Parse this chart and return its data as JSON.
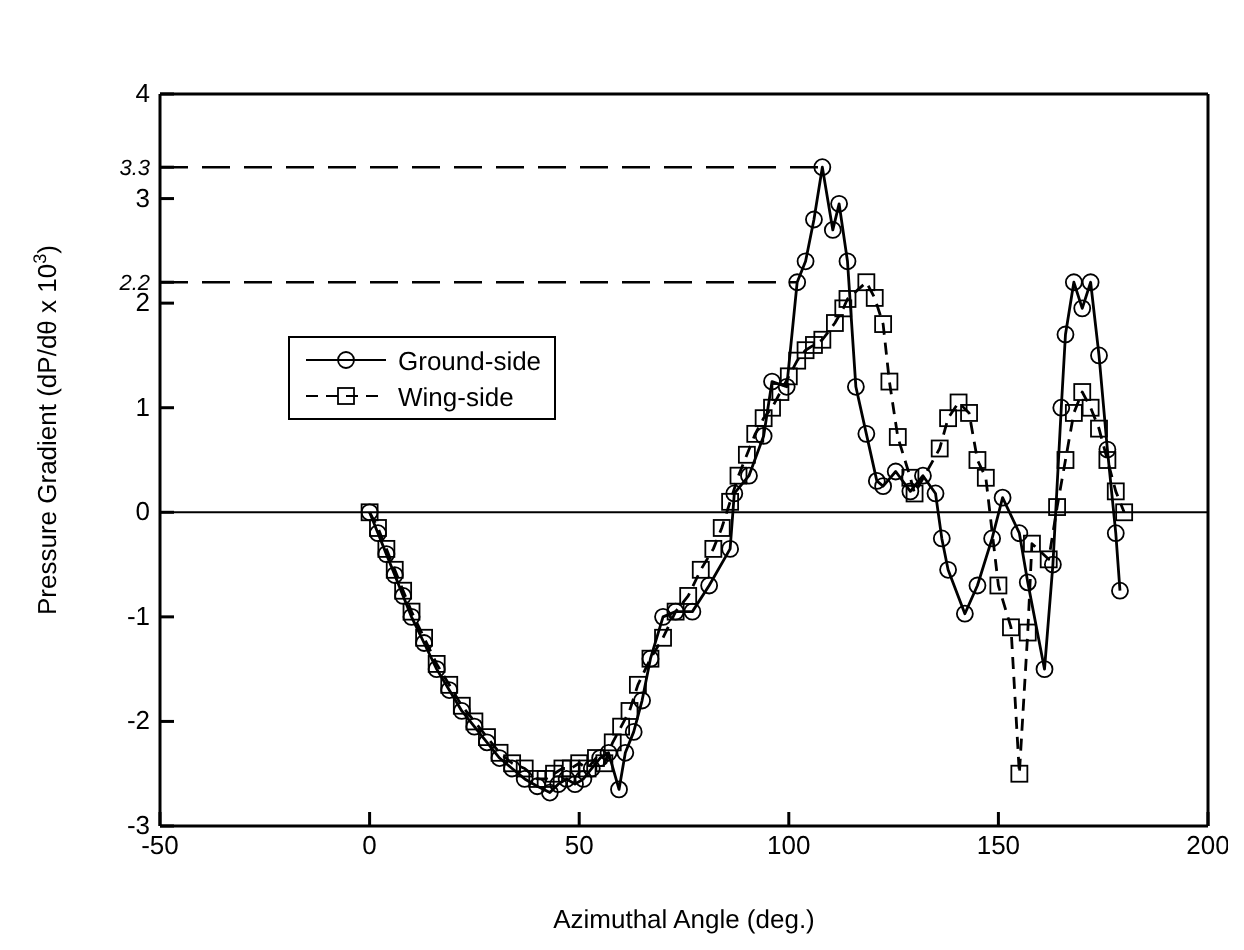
{
  "chart_data": {
    "type": "line",
    "xlabel": "Azimuthal Angle (deg.)",
    "ylabel": "Pressure Gradient (dP/dθ x 10$^{3}$)",
    "xlim": [
      -50,
      200
    ],
    "xticks": [
      -50,
      0,
      50,
      100,
      150,
      200
    ],
    "ylim": [
      -3,
      4
    ],
    "yticks": [
      -3,
      -2,
      -1,
      0,
      1,
      2,
      {
        "value": 2.2,
        "label": "2.2"
      },
      3,
      {
        "value": 3.3,
        "label": "3.3"
      },
      4
    ],
    "grid": false,
    "legend": "left",
    "ref_lines": [
      {
        "axis": "y",
        "value": 0,
        "line_style": "solid"
      },
      {
        "axis": "y",
        "value": 3.3,
        "line_style": "dashed"
      },
      {
        "axis": "y",
        "value": 2.2,
        "line_style": "dashed"
      }
    ],
    "series": [
      {
        "name": "Ground-side",
        "color": "#000000",
        "marker": "circle",
        "line_style": "solid",
        "x": [
          0,
          2,
          4,
          6,
          8,
          10,
          13,
          16,
          19,
          22,
          25,
          28,
          31,
          34,
          37,
          40,
          43,
          45,
          47,
          49,
          51,
          53,
          55,
          57,
          59.5,
          61,
          63,
          65,
          67,
          70,
          73,
          77,
          81,
          86,
          87,
          90.5,
          94,
          96,
          99.5,
          102,
          104,
          106,
          108,
          110.5,
          112,
          114,
          116,
          118.5,
          121,
          122.5,
          125.5,
          129,
          132,
          135,
          136.5,
          138,
          142,
          145,
          148.5,
          151,
          155,
          157,
          161,
          163,
          165,
          166,
          168,
          170,
          172,
          174,
          176,
          178,
          179
        ],
        "values": [
          0,
          -0.2,
          -0.4,
          -0.6,
          -0.8,
          -1.0,
          -1.25,
          -1.5,
          -1.7,
          -1.9,
          -2.05,
          -2.2,
          -2.35,
          -2.45,
          -2.55,
          -2.62,
          -2.68,
          -2.6,
          -2.55,
          -2.6,
          -2.55,
          -2.45,
          -2.35,
          -2.3,
          -2.65,
          -2.3,
          -2.1,
          -1.8,
          -1.4,
          -1.0,
          -0.95,
          -0.95,
          -0.7,
          -0.35,
          0.18,
          0.35,
          0.73,
          1.25,
          1.2,
          2.2,
          2.4,
          2.8,
          3.3,
          2.7,
          2.95,
          2.4,
          1.2,
          0.75,
          0.3,
          0.25,
          0.39,
          0.2,
          0.35,
          0.18,
          -0.25,
          -0.55,
          -0.97,
          -0.7,
          -0.25,
          0.14,
          -0.2,
          -0.67,
          -1.5,
          -0.5,
          1.0,
          1.7,
          2.2,
          1.95,
          2.2,
          1.5,
          0.6,
          -0.2,
          -0.75
        ]
      },
      {
        "name": "Wing-side",
        "color": "#000000",
        "marker": "square",
        "line_style": "dashed",
        "x": [
          0,
          2,
          4,
          6,
          8,
          10,
          13,
          16,
          19,
          22,
          25,
          28,
          31,
          34,
          37,
          40,
          42,
          44,
          46,
          48,
          50,
          52,
          54,
          56,
          58,
          60,
          62,
          64,
          67,
          70,
          73,
          76,
          79,
          82,
          84,
          86,
          88,
          90,
          92,
          94,
          96,
          98,
          100,
          102,
          104,
          106,
          108,
          111,
          113,
          114,
          118.5,
          120.5,
          122.5,
          124,
          126,
          129,
          130,
          136,
          138,
          140.5,
          143,
          145,
          147,
          150,
          153,
          155,
          157,
          158,
          162,
          164,
          166,
          168,
          170,
          172,
          174,
          176,
          178,
          180
        ],
        "values": [
          0,
          -0.15,
          -0.35,
          -0.55,
          -0.75,
          -0.95,
          -1.2,
          -1.45,
          -1.65,
          -1.85,
          -2.0,
          -2.15,
          -2.3,
          -2.4,
          -2.45,
          -2.55,
          -2.55,
          -2.5,
          -2.45,
          -2.45,
          -2.4,
          -2.45,
          -2.35,
          -2.4,
          -2.2,
          -2.05,
          -1.9,
          -1.65,
          -1.4,
          -1.2,
          -0.95,
          -0.8,
          -0.55,
          -0.35,
          -0.15,
          0.1,
          0.35,
          0.55,
          0.75,
          0.9,
          1.0,
          1.15,
          1.3,
          1.45,
          1.55,
          1.6,
          1.65,
          1.81,
          1.95,
          2.04,
          2.2,
          2.05,
          1.8,
          1.25,
          0.72,
          0.33,
          0.18,
          0.61,
          0.9,
          1.05,
          0.95,
          0.5,
          0.33,
          -0.7,
          -1.1,
          -2.5,
          -1.15,
          -0.3,
          -0.45,
          0.05,
          0.5,
          0.95,
          1.15,
          1.0,
          0.8,
          0.5,
          0.2,
          0
        ]
      }
    ]
  }
}
